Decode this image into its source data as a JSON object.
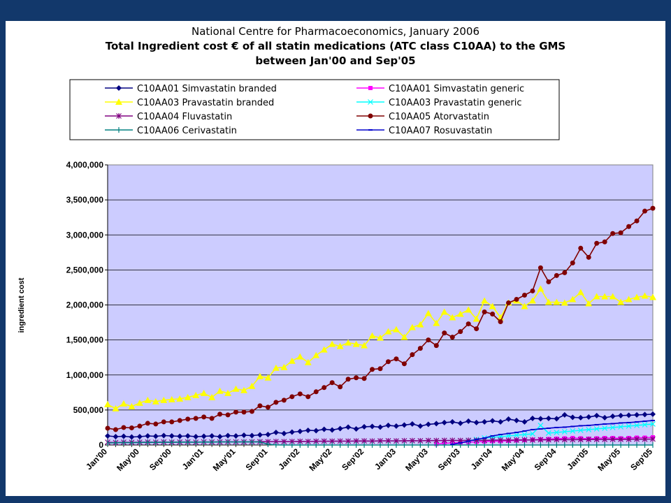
{
  "chart_data": {
    "type": "line",
    "title_lines": [
      "National Centre for Pharmacoeconomics, January 2006",
      "Total Ingredient cost € of all statin medications (ATC class C10AA) to the GMS",
      "between Jan'00 and Sep'05"
    ],
    "xlabel": "",
    "ylabel": "ingredient cost",
    "ylim": [
      0,
      4000000
    ],
    "yticks": [
      0,
      500000,
      1000000,
      1500000,
      2000000,
      2500000,
      3000000,
      3500000,
      4000000
    ],
    "ytick_labels": [
      "0",
      "500,000",
      "1,000,000",
      "1,500,000",
      "2,000,000",
      "2,500,000",
      "3,000,000",
      "3,500,000",
      "4,000,000"
    ],
    "x_tick_labels": [
      "Jan'00",
      "May'00",
      "Sep'00",
      "Jan'01",
      "May'01",
      "Sep'01",
      "Jan'02",
      "May'02",
      "Sep'02",
      "Jan'03",
      "May'03",
      "Sep'03",
      "Jan'04",
      "May'04",
      "Sep'04",
      "Jan'05",
      "May'05",
      "Sep'05"
    ],
    "x_tick_every": 4,
    "n_months": 69,
    "grid": true,
    "plot_background": "#ccccff",
    "legend_position": "top",
    "series": [
      {
        "name": "C10AA01 Simvastatin branded",
        "color": "#000080",
        "marker": "diamond",
        "start": 0,
        "values": [
          130000,
          120000,
          125000,
          115000,
          120000,
          130000,
          125000,
          135000,
          130000,
          125000,
          130000,
          120000,
          125000,
          130000,
          120000,
          135000,
          130000,
          140000,
          135000,
          145000,
          150000,
          180000,
          165000,
          185000,
          195000,
          210000,
          205000,
          225000,
          215000,
          235000,
          255000,
          230000,
          260000,
          265000,
          255000,
          280000,
          270000,
          285000,
          300000,
          270000,
          295000,
          305000,
          320000,
          330000,
          310000,
          340000,
          320000,
          330000,
          345000,
          330000,
          370000,
          350000,
          330000,
          380000,
          375000,
          380000,
          375000,
          430000,
          395000,
          390000,
          400000,
          420000,
          390000,
          410000,
          420000,
          425000,
          430000,
          435000,
          440000
        ]
      },
      {
        "name": "C10AA01 Simvastatin generic",
        "color": "#ff00ff",
        "marker": "square",
        "start": 41,
        "values": [
          15000,
          25000,
          30000,
          35000,
          40000,
          45000,
          50000,
          55000,
          55000,
          60000,
          65000,
          70000,
          75000,
          80000,
          85000,
          90000,
          95000,
          100000,
          95000,
          90000,
          95000,
          100000,
          100000,
          95000,
          100000,
          105000,
          105000,
          110000
        ]
      },
      {
        "name": "C10AA03 Pravastatin branded",
        "color": "#ffff00",
        "marker": "triangle",
        "start": 0,
        "values": [
          580000,
          520000,
          590000,
          550000,
          600000,
          640000,
          620000,
          640000,
          650000,
          660000,
          680000,
          710000,
          740000,
          680000,
          770000,
          740000,
          800000,
          780000,
          840000,
          980000,
          960000,
          1100000,
          1110000,
          1200000,
          1260000,
          1180000,
          1280000,
          1360000,
          1440000,
          1410000,
          1460000,
          1440000,
          1420000,
          1560000,
          1530000,
          1620000,
          1650000,
          1540000,
          1680000,
          1720000,
          1880000,
          1740000,
          1900000,
          1820000,
          1870000,
          1930000,
          1800000,
          2060000,
          1980000,
          1820000,
          2030000,
          2060000,
          1980000,
          2060000,
          2230000,
          2040000,
          2040000,
          2030000,
          2080000,
          2180000,
          2020000,
          2120000,
          2120000,
          2120000,
          2040000,
          2080000,
          2110000,
          2130000,
          2110000
        ]
      },
      {
        "name": "C10AA03 Pravastatin generic",
        "color": "#00ffff",
        "marker": "x",
        "start": 45,
        "values": [
          60000,
          80000,
          100000,
          110000,
          120000,
          130000,
          140000,
          150000,
          160000,
          280000,
          170000,
          180000,
          190000,
          200000,
          210000,
          220000,
          230000,
          240000,
          250000,
          260000,
          270000,
          280000,
          290000,
          300000
        ]
      },
      {
        "name": "C10AA04 Fluvastatin",
        "color": "#800080",
        "marker": "star",
        "start": 0,
        "values": [
          40000,
          35000,
          40000,
          38000,
          40000,
          42000,
          40000,
          43000,
          41000,
          42000,
          44000,
          40000,
          45000,
          43000,
          44000,
          46000,
          45000,
          44000,
          46000,
          48000,
          47000,
          50000,
          48000,
          50000,
          52000,
          50000,
          53000,
          55000,
          54000,
          56000,
          55000,
          57000,
          58000,
          56000,
          59000,
          60000,
          58000,
          61000,
          62000,
          60000,
          64000,
          63000,
          65000,
          66000,
          64000,
          67000,
          68000,
          66000,
          70000,
          71000,
          69000,
          72000,
          73000,
          72000,
          75000,
          74000,
          76000,
          77000,
          76000,
          78000,
          80000,
          79000,
          80000,
          82000,
          81000,
          82000,
          84000,
          83000,
          85000
        ]
      },
      {
        "name": "C10AA05 Atorvastatin",
        "color": "#800000",
        "marker": "circle",
        "start": 0,
        "values": [
          240000,
          220000,
          250000,
          245000,
          270000,
          310000,
          300000,
          330000,
          330000,
          350000,
          370000,
          380000,
          400000,
          380000,
          440000,
          430000,
          470000,
          470000,
          480000,
          560000,
          540000,
          610000,
          640000,
          690000,
          730000,
          690000,
          760000,
          820000,
          890000,
          830000,
          940000,
          960000,
          950000,
          1080000,
          1090000,
          1190000,
          1230000,
          1160000,
          1290000,
          1380000,
          1500000,
          1420000,
          1600000,
          1540000,
          1620000,
          1730000,
          1660000,
          1900000,
          1870000,
          1760000,
          2030000,
          2080000,
          2140000,
          2200000,
          2530000,
          2330000,
          2420000,
          2460000,
          2600000,
          2810000,
          2680000,
          2880000,
          2900000,
          3020000,
          3030000,
          3120000,
          3200000,
          3340000,
          3380000
        ]
      },
      {
        "name": "C10AA06 Cerivastatin",
        "color": "#008080",
        "marker": "plus",
        "start": 0,
        "values": [
          30000,
          32000,
          35000,
          33000,
          36000,
          38000,
          37000,
          40000,
          39000,
          41000,
          42000,
          40000,
          43000,
          42000,
          44000,
          45000,
          43000,
          46000,
          44000,
          45000,
          10000,
          2000,
          0,
          0,
          0,
          0,
          0,
          0,
          0,
          0,
          0,
          0,
          0,
          0,
          0,
          0,
          0,
          0,
          0,
          0,
          0,
          0,
          0,
          0,
          0,
          0,
          0,
          0,
          0,
          0,
          0,
          0,
          0,
          0,
          0,
          0,
          0,
          0,
          0,
          0,
          0,
          0,
          0,
          0,
          0,
          0,
          0,
          0,
          0
        ]
      },
      {
        "name": "C10AA07 Rosuvastatin",
        "color": "#0000cc",
        "marker": "dash",
        "start": 43,
        "values": [
          10000,
          30000,
          55000,
          80000,
          100000,
          130000,
          150000,
          165000,
          180000,
          200000,
          220000,
          230000,
          240000,
          250000,
          255000,
          265000,
          275000,
          280000,
          290000,
          300000,
          305000,
          315000,
          320000,
          330000,
          340000,
          350000
        ]
      }
    ]
  }
}
